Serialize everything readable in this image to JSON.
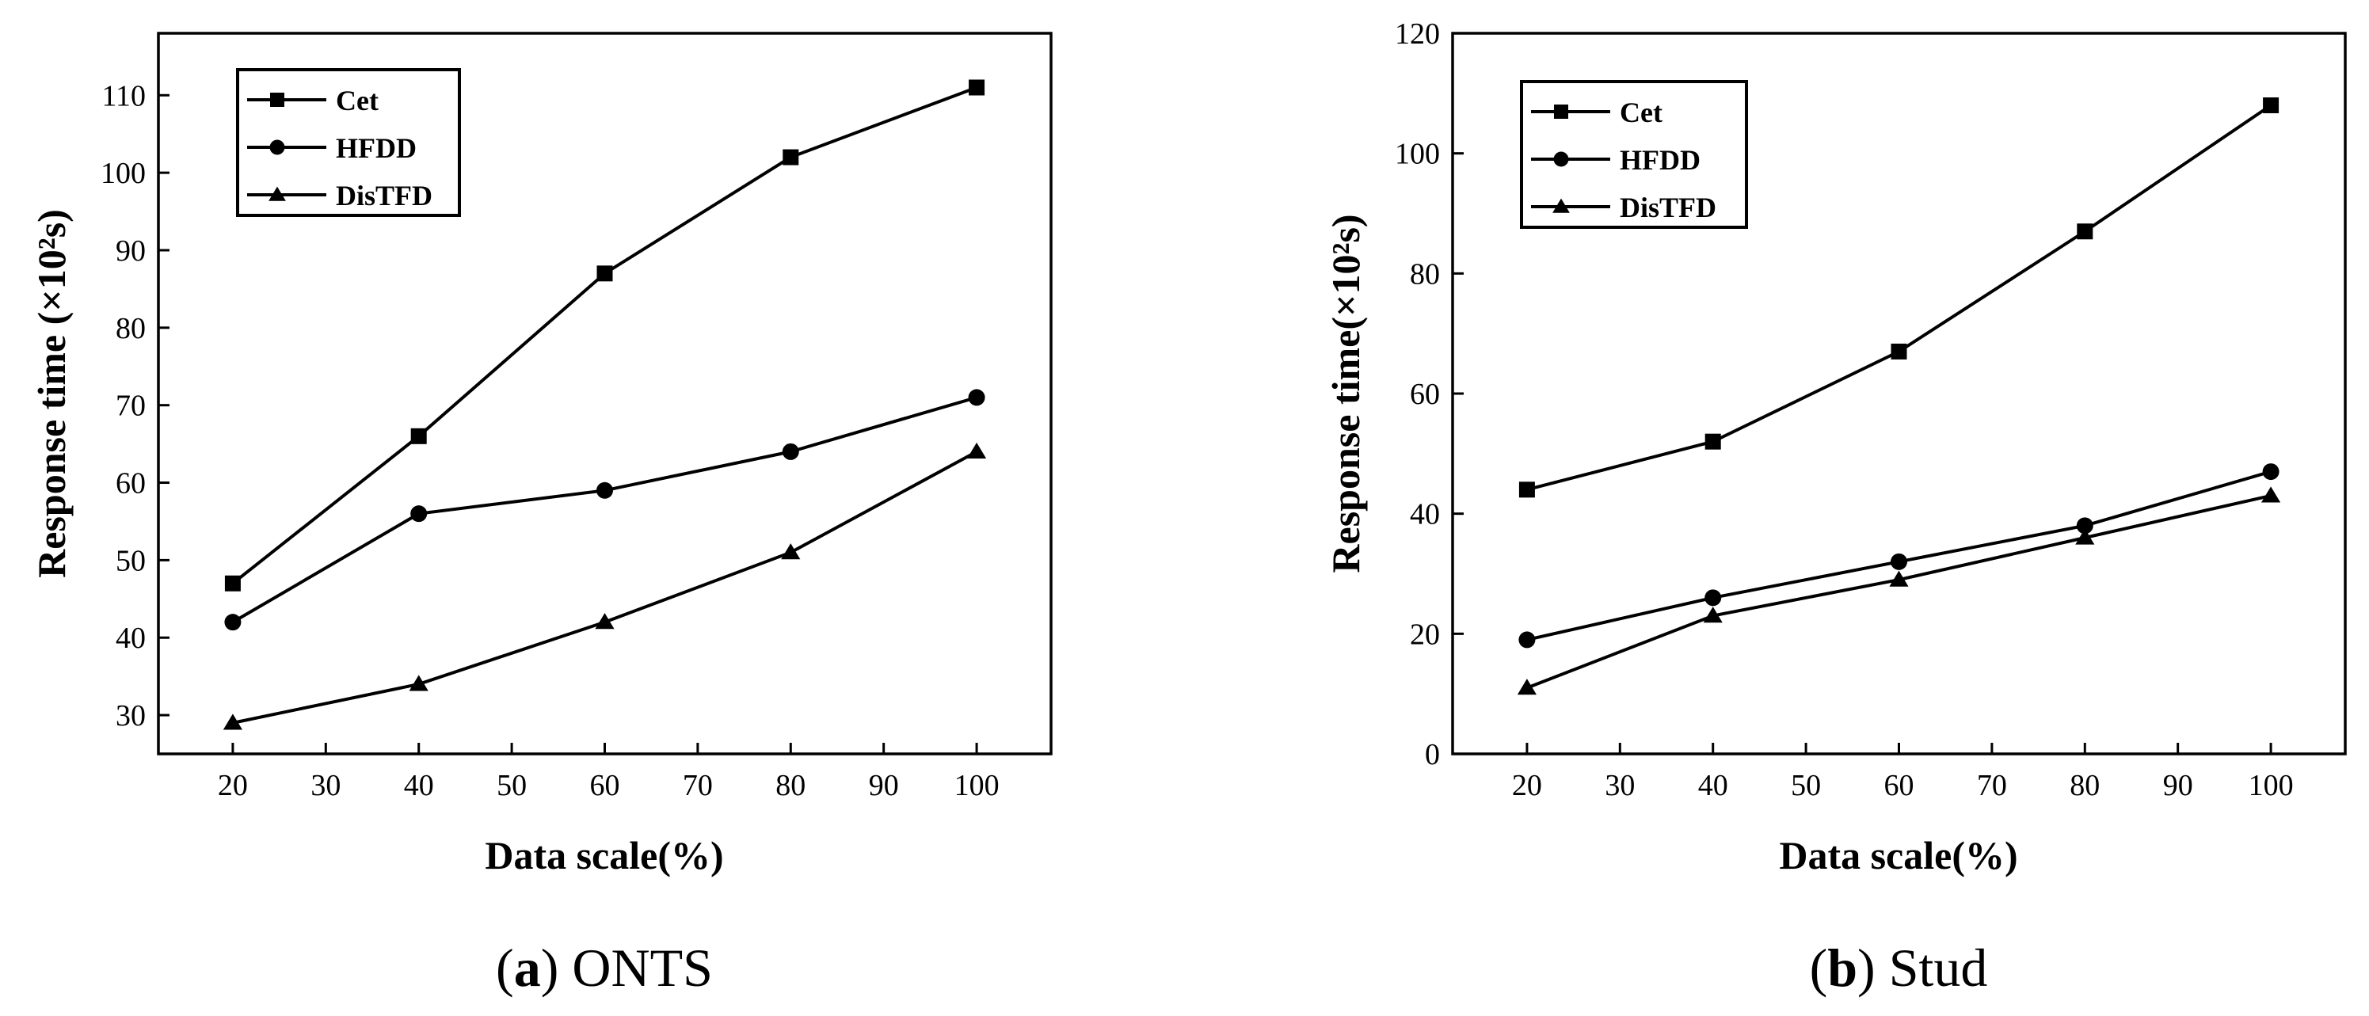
{
  "chart_data": [
    {
      "type": "line",
      "caption_label": "a",
      "caption_text": "ONTS",
      "xlabel": "Data scale(%)",
      "ylabel": "Response time (×10²s)",
      "xlim": [
        12,
        108
      ],
      "ylim": [
        25,
        118
      ],
      "xticks": [
        20,
        30,
        40,
        50,
        60,
        70,
        80,
        90,
        100
      ],
      "yticks": [
        30,
        40,
        50,
        60,
        70,
        80,
        90,
        100,
        110
      ],
      "x": [
        20,
        40,
        60,
        80,
        100
      ],
      "legend_position": "top-left",
      "series": [
        {
          "name": "Cet",
          "marker": "square",
          "values": [
            47,
            66,
            87,
            102,
            111
          ]
        },
        {
          "name": "HFDD",
          "marker": "circle",
          "values": [
            42,
            56,
            59,
            64,
            71
          ]
        },
        {
          "name": "DisTFD",
          "marker": "triangle",
          "values": [
            29,
            34,
            42,
            51,
            64
          ]
        }
      ]
    },
    {
      "type": "line",
      "caption_label": "b",
      "caption_text": "Stud",
      "xlabel": "Data scale(%)",
      "ylabel": "Response time(×10²s)",
      "xlim": [
        12,
        108
      ],
      "ylim": [
        0,
        120
      ],
      "xticks": [
        20,
        30,
        40,
        50,
        60,
        70,
        80,
        90,
        100
      ],
      "yticks": [
        0,
        20,
        40,
        60,
        80,
        100,
        120
      ],
      "x": [
        20,
        40,
        60,
        80,
        100
      ],
      "legend_position": "top-left",
      "series": [
        {
          "name": "Cet",
          "marker": "square",
          "values": [
            44,
            52,
            67,
            87,
            108
          ]
        },
        {
          "name": "HFDD",
          "marker": "circle",
          "values": [
            19,
            26,
            32,
            38,
            47
          ]
        },
        {
          "name": "DisTFD",
          "marker": "triangle",
          "values": [
            11,
            23,
            29,
            36,
            43
          ]
        }
      ]
    }
  ]
}
